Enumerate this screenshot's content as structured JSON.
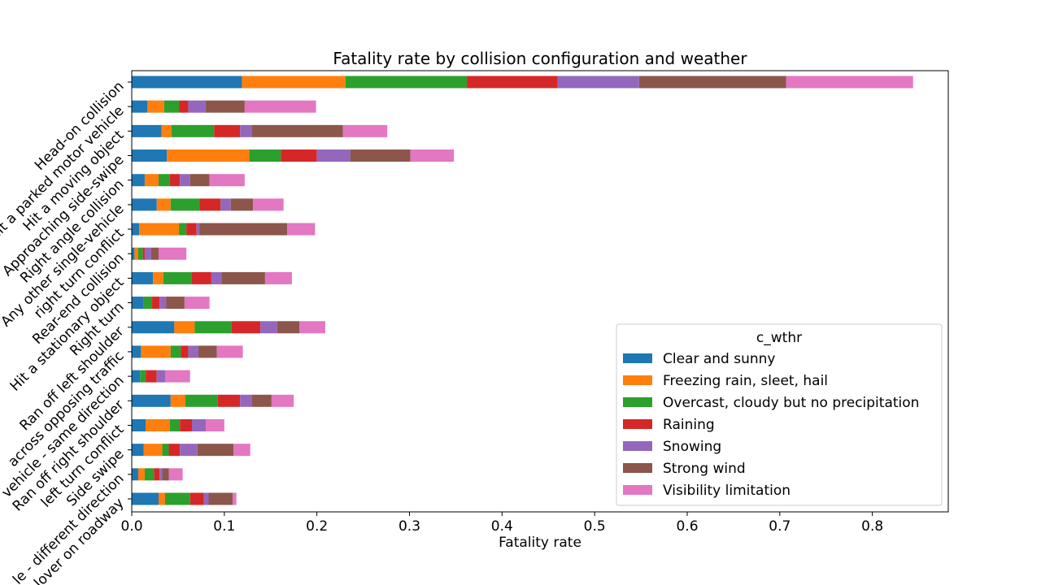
{
  "chart_data": {
    "type": "bar",
    "orientation": "horizontal",
    "stacked": true,
    "title": "Fatality rate by collision configuration and weather",
    "xlabel": "Fatality rate",
    "ylabel": "",
    "xlim": [
      0,
      0.882
    ],
    "xticks": [
      "0.0",
      "0.1",
      "0.2",
      "0.3",
      "0.4",
      "0.5",
      "0.6",
      "0.7",
      "0.8"
    ],
    "grid": false,
    "legend_title": "c_wthr",
    "legend_position": "lower-right",
    "categories": [
      "Head-on collision",
      "Hit a parked motor vehicle",
      "Hit a moving object",
      "Approaching side-swipe",
      "Right angle collision",
      "Any other single-vehicle",
      "right turn conflict",
      "Rear-end collision",
      "Hit a stationary object",
      "Right turn",
      "Ran off left shoulder",
      "across opposing traffic",
      "vehicle - same direction",
      "Ran off right shoulder",
      "left turn conflict",
      "Side swipe",
      "le - different direction",
      "lover on roadway"
    ],
    "series": [
      {
        "name": "Clear and sunny",
        "color": "#1f77b4",
        "values": [
          0.119,
          0.017,
          0.032,
          0.038,
          0.014,
          0.027,
          0.008,
          0.003,
          0.023,
          0.013,
          0.046,
          0.01,
          0.009,
          0.042,
          0.015,
          0.013,
          0.007,
          0.029
        ]
      },
      {
        "name": "Freezing rain, sleet, hail",
        "color": "#ff7f0e",
        "values": [
          0.112,
          0.018,
          0.011,
          0.089,
          0.015,
          0.015,
          0.043,
          0.004,
          0.011,
          0.0,
          0.022,
          0.032,
          0.0,
          0.016,
          0.026,
          0.02,
          0.007,
          0.007
        ]
      },
      {
        "name": "Overcast, cloudy but no precipitation",
        "color": "#2ca02c",
        "values": [
          0.131,
          0.016,
          0.046,
          0.034,
          0.012,
          0.031,
          0.008,
          0.005,
          0.031,
          0.009,
          0.04,
          0.011,
          0.006,
          0.035,
          0.011,
          0.007,
          0.01,
          0.027
        ]
      },
      {
        "name": "Raining",
        "color": "#d62728",
        "values": [
          0.098,
          0.01,
          0.028,
          0.039,
          0.011,
          0.023,
          0.011,
          0.002,
          0.021,
          0.008,
          0.031,
          0.008,
          0.012,
          0.024,
          0.013,
          0.012,
          0.006,
          0.015
        ]
      },
      {
        "name": "Snowing",
        "color": "#9467bd",
        "values": [
          0.088,
          0.019,
          0.013,
          0.036,
          0.011,
          0.011,
          0.003,
          0.007,
          0.011,
          0.007,
          0.018,
          0.011,
          0.009,
          0.013,
          0.015,
          0.019,
          0.003,
          0.005
        ]
      },
      {
        "name": "Strong wind",
        "color": "#8c564b",
        "values": [
          0.159,
          0.042,
          0.098,
          0.065,
          0.021,
          0.024,
          0.095,
          0.008,
          0.047,
          0.02,
          0.024,
          0.02,
          0.0,
          0.021,
          0.0,
          0.039,
          0.007,
          0.026
        ]
      },
      {
        "name": "Visibility limitation",
        "color": "#e377c2",
        "values": [
          0.137,
          0.077,
          0.048,
          0.047,
          0.038,
          0.033,
          0.03,
          0.03,
          0.029,
          0.027,
          0.028,
          0.028,
          0.027,
          0.024,
          0.02,
          0.018,
          0.015,
          0.004
        ]
      }
    ]
  }
}
